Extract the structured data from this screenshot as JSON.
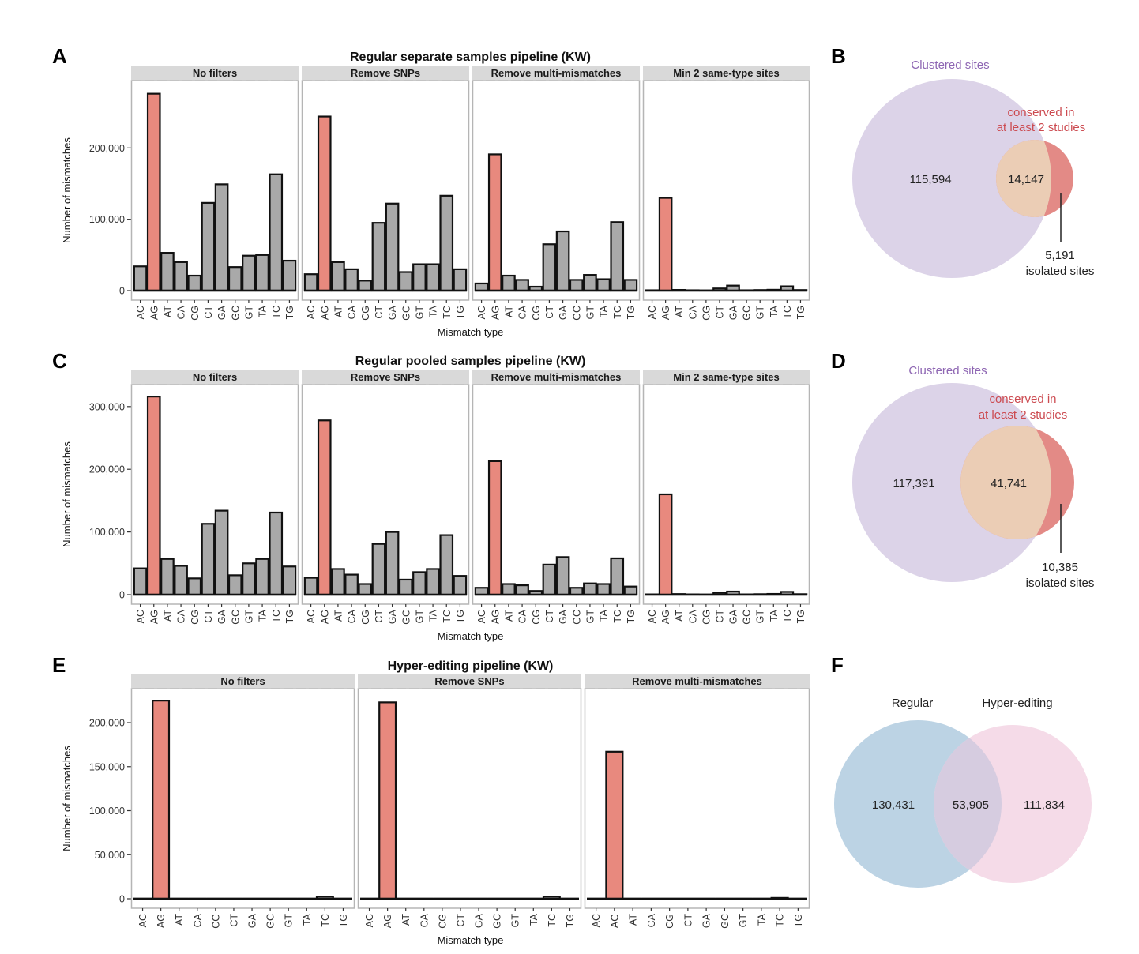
{
  "colors": {
    "highlight_bar": "#e8897e",
    "other_bar": "#a9a9a9",
    "strip_bg": "#d9d9d9",
    "venn_clustered": "#dcd3e8",
    "venn_conserved_overlap": "#ebcdb5",
    "venn_conserved": "#e38a86",
    "venn_regular": "#bcd3e4",
    "venn_hyper": "#f5dbe8",
    "venn_regular_hyper_overlap": "#d6cce0"
  },
  "chart_data": [
    {
      "id": "A",
      "type": "bar",
      "panel_letter": "A",
      "title": "Regular separate samples pipeline (KW)",
      "xlabel": "Mismatch type",
      "ylabel": "Number of mismatches",
      "ylim": [
        0,
        290000
      ],
      "yticks": [
        0,
        100000,
        200000
      ],
      "ytick_labels": [
        "0",
        "100,000",
        "200,000"
      ],
      "categories": [
        "AC",
        "AG",
        "AT",
        "CA",
        "CG",
        "CT",
        "GA",
        "GC",
        "GT",
        "TA",
        "TC",
        "TG"
      ],
      "highlight": "AG",
      "facets": [
        {
          "name": "No filters",
          "values": [
            34000,
            276000,
            53000,
            40000,
            21000,
            123000,
            149000,
            33000,
            49000,
            50000,
            163000,
            42000
          ]
        },
        {
          "name": "Remove SNPs",
          "values": [
            23000,
            244000,
            40000,
            30000,
            14000,
            95000,
            122000,
            26000,
            37000,
            37000,
            133000,
            30000
          ]
        },
        {
          "name": "Remove multi-mismatches",
          "values": [
            10000,
            191000,
            21000,
            15000,
            5500,
            65000,
            83000,
            15000,
            22000,
            16000,
            96000,
            15000
          ]
        },
        {
          "name": "Min 2 same-type sites",
          "values": [
            500,
            130000,
            1000,
            500,
            300,
            3000,
            7000,
            500,
            800,
            1200,
            6000,
            800
          ]
        }
      ]
    },
    {
      "id": "C",
      "type": "bar",
      "panel_letter": "C",
      "title": "Regular pooled samples pipeline (KW)",
      "xlabel": "Mismatch type",
      "ylabel": "Number of mismatches",
      "ylim": [
        0,
        330000
      ],
      "yticks": [
        0,
        100000,
        200000,
        300000
      ],
      "ytick_labels": [
        "0",
        "100,000",
        "200,000",
        "300,000"
      ],
      "categories": [
        "AC",
        "AG",
        "AT",
        "CA",
        "CG",
        "CT",
        "GA",
        "GC",
        "GT",
        "TA",
        "TC",
        "TG"
      ],
      "highlight": "AG",
      "facets": [
        {
          "name": "No filters",
          "values": [
            42000,
            316000,
            57000,
            46000,
            26000,
            113000,
            134000,
            31000,
            50000,
            57000,
            131000,
            45000
          ]
        },
        {
          "name": "Remove SNPs",
          "values": [
            27000,
            278000,
            41000,
            32000,
            17000,
            81000,
            100000,
            24000,
            36000,
            41000,
            95000,
            30000
          ]
        },
        {
          "name": "Remove multi-mismatches",
          "values": [
            11000,
            213000,
            17000,
            15000,
            6000,
            48000,
            60000,
            11000,
            18000,
            17000,
            58000,
            13000
          ]
        },
        {
          "name": "Min 2 same-type sites",
          "values": [
            500,
            160000,
            1000,
            500,
            300,
            3000,
            5000,
            500,
            800,
            1200,
            4500,
            800
          ]
        }
      ]
    },
    {
      "id": "E",
      "type": "bar",
      "panel_letter": "E",
      "title": "Hyper-editing pipeline (KW)",
      "xlabel": "Mismatch type",
      "ylabel": "Number of mismatches",
      "ylim": [
        0,
        235000
      ],
      "yticks": [
        0,
        50000,
        100000,
        150000,
        200000
      ],
      "ytick_labels": [
        "0",
        "50,000",
        "100,000",
        "150,000",
        "200,000"
      ],
      "categories": [
        "AC",
        "AG",
        "AT",
        "CA",
        "CG",
        "CT",
        "GA",
        "GC",
        "GT",
        "TA",
        "TC",
        "TG"
      ],
      "highlight": "AG",
      "facets": [
        {
          "name": "No filters",
          "values": [
            100,
            225000,
            100,
            100,
            100,
            100,
            100,
            100,
            100,
            100,
            2500,
            100
          ]
        },
        {
          "name": "Remove SNPs",
          "values": [
            100,
            223000,
            100,
            100,
            100,
            100,
            100,
            100,
            100,
            100,
            2500,
            100
          ]
        },
        {
          "name": "Remove multi-mismatches",
          "values": [
            100,
            167000,
            100,
            100,
            100,
            100,
            100,
            100,
            100,
            100,
            1000,
            100
          ]
        }
      ]
    }
  ],
  "venns": {
    "B": {
      "letter": "B",
      "set1_label": "Clustered sites",
      "set2_label_line1": "conserved in",
      "set2_label_line2": "at least 2 studies",
      "only1": "115,594",
      "overlap": "14,147",
      "only2": "5,191",
      "only2_label": "isolated sites"
    },
    "D": {
      "letter": "D",
      "set1_label": "Clustered sites",
      "set2_label_line1": "conserved in",
      "set2_label_line2": "at least 2 studies",
      "only1": "117,391",
      "overlap": "41,741",
      "only2": "10,385",
      "only2_label": "isolated sites"
    },
    "F": {
      "letter": "F",
      "set1_label": "Regular",
      "set2_label": "Hyper-editing",
      "only1": "130,431",
      "overlap": "53,905",
      "only2": "111,834"
    }
  }
}
